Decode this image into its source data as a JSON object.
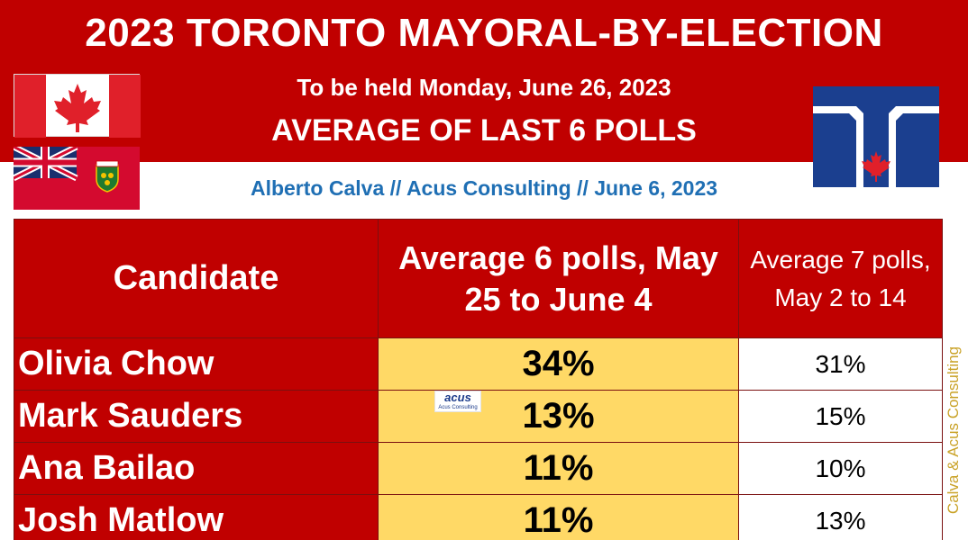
{
  "header": {
    "title": "2023 TORONTO MAYORAL-BY-ELECTION",
    "subtitle": "To be held Monday, June 26, 2023",
    "heading": "AVERAGE OF LAST 6 POLLS",
    "credit": "Alberto Calva // Acus Consulting // June 6, 2023"
  },
  "flags": {
    "canada": "canada-flag-icon",
    "ontario": "ontario-flag-icon",
    "toronto": "toronto-flag-icon"
  },
  "table": {
    "headers": {
      "candidate": "Candidate",
      "avg6": "Average 6 polls, May 25 to June 4",
      "avg7": "Average 7 polls, May 2 to 14"
    },
    "rows": [
      {
        "name": "Olivia Chow",
        "avg6": "34%",
        "avg7": "31%"
      },
      {
        "name": "Mark Sauders",
        "avg6": "13%",
        "avg7": "15%"
      },
      {
        "name": "Ana Bailao",
        "avg6": "11%",
        "avg7": "10%"
      },
      {
        "name": "Josh Matlow",
        "avg6": "11%",
        "avg7": "13%"
      }
    ]
  },
  "logo": {
    "name": "acus",
    "sub": "Acus Consulting"
  },
  "watermark": "Calva & Acus Consulting",
  "colors": {
    "banner_red": "#c00000",
    "highlight_yellow": "#ffd966",
    "credit_blue": "#1f6fb4",
    "watermark_gold": "#c9a227"
  }
}
